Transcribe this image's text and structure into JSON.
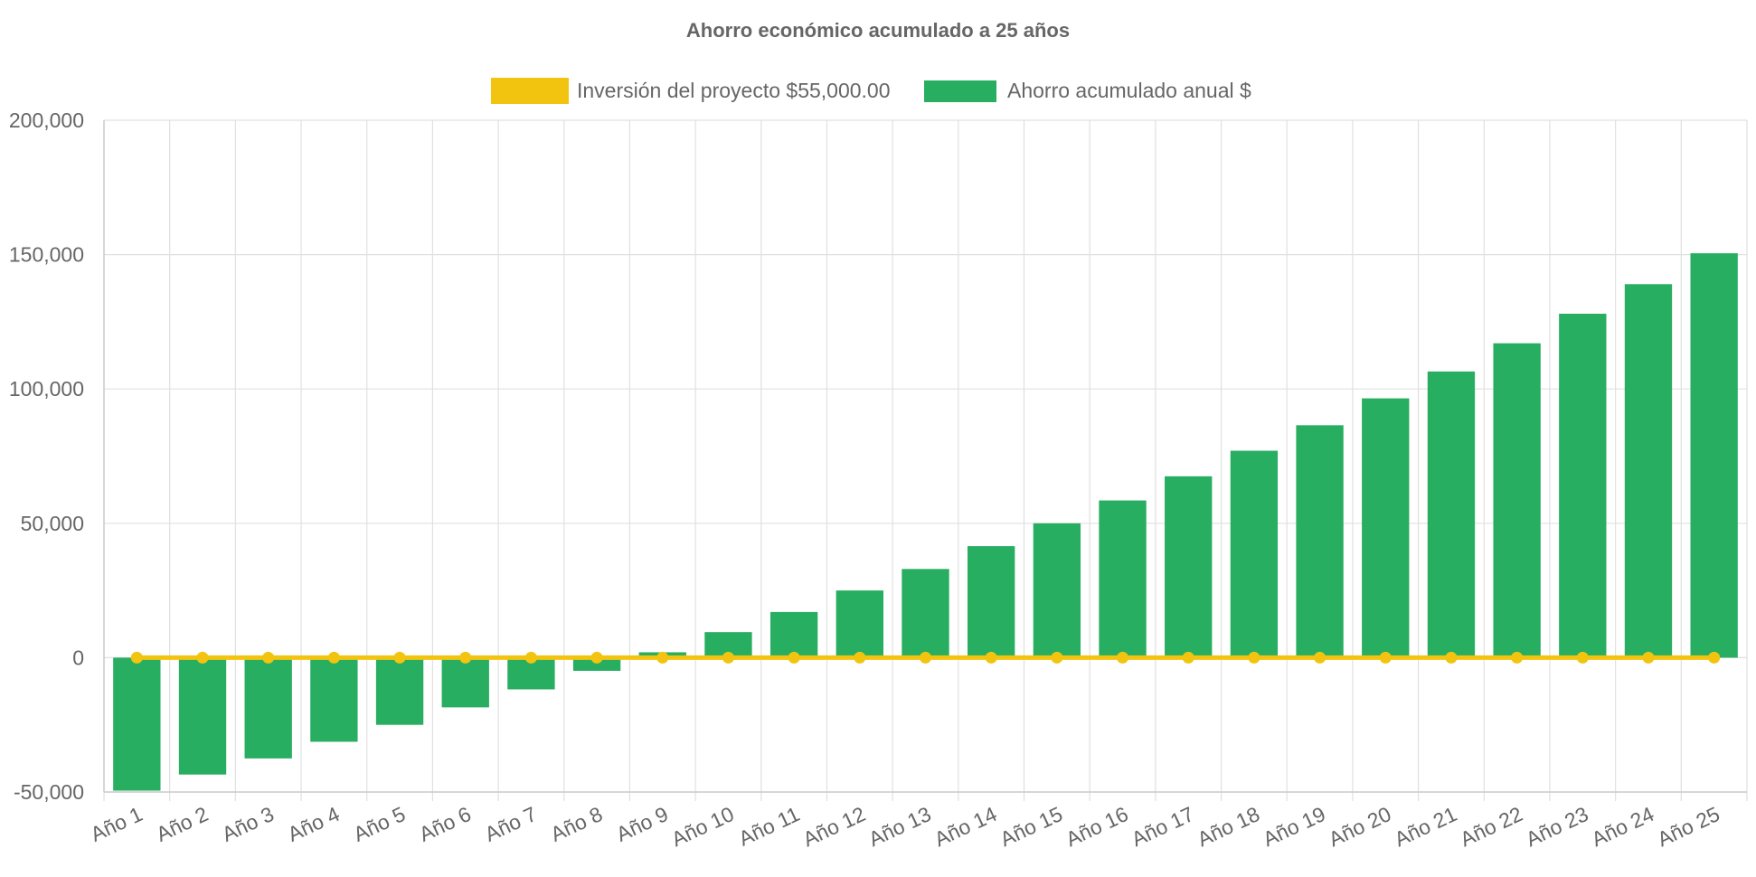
{
  "chart_data": {
    "type": "bar",
    "title": "Ahorro económico acumulado a 25 años",
    "categories": [
      "Año 1",
      "Año 2",
      "Año 3",
      "Año 4",
      "Año 5",
      "Año 6",
      "Año 7",
      "Año 8",
      "Año 9",
      "Año 10",
      "Año 11",
      "Año 12",
      "Año 13",
      "Año 14",
      "Año 15",
      "Año 16",
      "Año 17",
      "Año 18",
      "Año 19",
      "Año 20",
      "Año 21",
      "Año 22",
      "Año 23",
      "Año 24",
      "Año 25"
    ],
    "series": [
      {
        "name": "Inversión del proyecto $55,000.00",
        "kind": "line",
        "color": "#f2c40f",
        "values": [
          0,
          0,
          0,
          0,
          0,
          0,
          0,
          0,
          0,
          0,
          0,
          0,
          0,
          0,
          0,
          0,
          0,
          0,
          0,
          0,
          0,
          0,
          0,
          0,
          0
        ]
      },
      {
        "name": "Ahorro acumulado anual $",
        "kind": "bar",
        "color": "#27ae60",
        "values": [
          -49500,
          -43500,
          -37500,
          -31300,
          -25000,
          -18500,
          -11800,
          -4900,
          2000,
          9500,
          17000,
          25000,
          33000,
          41500,
          50000,
          58500,
          67500,
          77000,
          86500,
          96500,
          106500,
          117000,
          128000,
          139000,
          150500
        ]
      }
    ],
    "yticks": [
      "200,000",
      "150,000",
      "100,000",
      "50,000",
      "0",
      "-50,000"
    ],
    "ytick_values": [
      200000,
      150000,
      100000,
      50000,
      0,
      -50000
    ],
    "ylim": [
      -50000,
      200000
    ],
    "xlabel": "",
    "ylabel": "",
    "grid": true,
    "legend_position": "top-center",
    "grid_color": "#e0e0e0",
    "axis_color": "#cccccc"
  }
}
